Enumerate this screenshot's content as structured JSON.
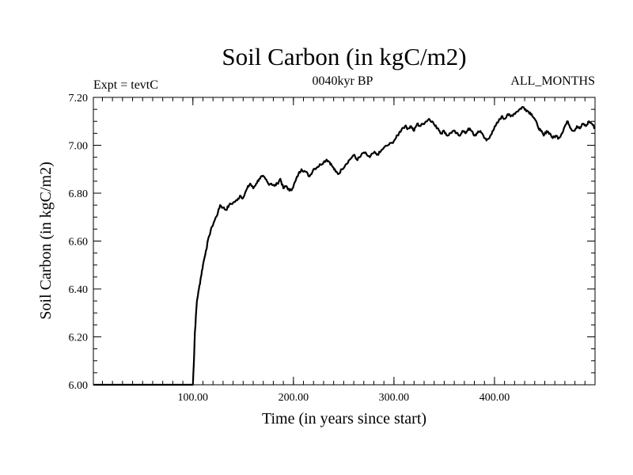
{
  "chart_data": {
    "type": "line",
    "title": "Soil Carbon (in kgC/m2)",
    "subtitle": "0040kyr BP",
    "left_note": "Expt = tevtC",
    "right_note": "ALL_MONTHS",
    "xlabel": "Time (in years since start)",
    "ylabel": "Soil Carbon (in kgC/m2)",
    "xlim": [
      1,
      500
    ],
    "ylim": [
      6.0,
      7.2
    ],
    "x_ticks": [
      100,
      200,
      300,
      400
    ],
    "x_tick_labels": [
      "100.00",
      "200.00",
      "300.00",
      "400.00"
    ],
    "y_ticks": [
      6.0,
      6.2,
      6.4,
      6.6,
      6.8,
      7.0,
      7.2
    ],
    "y_tick_labels": [
      "6.00",
      "6.20",
      "6.40",
      "6.60",
      "6.80",
      "7.00",
      "7.20"
    ],
    "x_minor_step": 10,
    "y_minor_step": 0.05,
    "grid": false,
    "series": [
      {
        "color": "#000000",
        "points": [
          [
            1,
            6.0
          ],
          [
            99,
            6.0
          ],
          [
            100,
            6.0
          ],
          [
            101,
            6.1
          ],
          [
            102,
            6.22
          ],
          [
            104,
            6.35
          ],
          [
            106,
            6.4
          ],
          [
            108,
            6.45
          ],
          [
            110,
            6.5
          ],
          [
            113,
            6.56
          ],
          [
            116,
            6.62
          ],
          [
            119,
            6.66
          ],
          [
            122,
            6.69
          ],
          [
            125,
            6.72
          ],
          [
            127,
            6.75
          ],
          [
            130,
            6.74
          ],
          [
            133,
            6.73
          ],
          [
            136,
            6.75
          ],
          [
            140,
            6.76
          ],
          [
            144,
            6.77
          ],
          [
            147,
            6.79
          ],
          [
            150,
            6.78
          ],
          [
            154,
            6.82
          ],
          [
            157,
            6.84
          ],
          [
            160,
            6.82
          ],
          [
            163,
            6.84
          ],
          [
            166,
            6.86
          ],
          [
            169,
            6.87
          ],
          [
            172,
            6.86
          ],
          [
            175,
            6.84
          ],
          [
            178,
            6.84
          ],
          [
            181,
            6.83
          ],
          [
            184,
            6.84
          ],
          [
            187,
            6.86
          ],
          [
            190,
            6.82
          ],
          [
            193,
            6.83
          ],
          [
            196,
            6.81
          ],
          [
            199,
            6.82
          ],
          [
            202,
            6.85
          ],
          [
            205,
            6.88
          ],
          [
            208,
            6.9
          ],
          [
            212,
            6.89
          ],
          [
            216,
            6.87
          ],
          [
            220,
            6.9
          ],
          [
            224,
            6.91
          ],
          [
            227,
            6.92
          ],
          [
            230,
            6.93
          ],
          [
            233,
            6.94
          ],
          [
            236,
            6.93
          ],
          [
            239,
            6.91
          ],
          [
            242,
            6.89
          ],
          [
            245,
            6.88
          ],
          [
            248,
            6.9
          ],
          [
            252,
            6.92
          ],
          [
            256,
            6.94
          ],
          [
            260,
            6.96
          ],
          [
            263,
            6.94
          ],
          [
            266,
            6.95
          ],
          [
            270,
            6.97
          ],
          [
            273,
            6.96
          ],
          [
            276,
            6.95
          ],
          [
            280,
            6.97
          ],
          [
            283,
            6.96
          ],
          [
            286,
            6.97
          ],
          [
            290,
            6.99
          ],
          [
            294,
            7.0
          ],
          [
            298,
            7.01
          ],
          [
            302,
            7.03
          ],
          [
            305,
            7.05
          ],
          [
            308,
            7.07
          ],
          [
            311,
            7.08
          ],
          [
            314,
            7.07
          ],
          [
            317,
            7.08
          ],
          [
            320,
            7.06
          ],
          [
            323,
            7.09
          ],
          [
            326,
            7.08
          ],
          [
            329,
            7.09
          ],
          [
            332,
            7.1
          ],
          [
            335,
            7.11
          ],
          [
            338,
            7.1
          ],
          [
            341,
            7.08
          ],
          [
            344,
            7.07
          ],
          [
            347,
            7.05
          ],
          [
            350,
            7.06
          ],
          [
            353,
            7.04
          ],
          [
            356,
            7.05
          ],
          [
            359,
            7.06
          ],
          [
            362,
            7.05
          ],
          [
            365,
            7.04
          ],
          [
            368,
            7.06
          ],
          [
            371,
            7.05
          ],
          [
            374,
            7.07
          ],
          [
            377,
            7.06
          ],
          [
            380,
            7.04
          ],
          [
            383,
            7.05
          ],
          [
            386,
            7.06
          ],
          [
            389,
            7.04
          ],
          [
            392,
            7.02
          ],
          [
            395,
            7.03
          ],
          [
            398,
            7.06
          ],
          [
            401,
            7.08
          ],
          [
            404,
            7.1
          ],
          [
            407,
            7.12
          ],
          [
            410,
            7.11
          ],
          [
            413,
            7.13
          ],
          [
            416,
            7.12
          ],
          [
            419,
            7.13
          ],
          [
            422,
            7.14
          ],
          [
            425,
            7.15
          ],
          [
            428,
            7.16
          ],
          [
            431,
            7.15
          ],
          [
            434,
            7.14
          ],
          [
            437,
            7.13
          ],
          [
            440,
            7.11
          ],
          [
            443,
            7.08
          ],
          [
            446,
            7.06
          ],
          [
            449,
            7.04
          ],
          [
            452,
            7.06
          ],
          [
            455,
            7.05
          ],
          [
            458,
            7.03
          ],
          [
            461,
            7.04
          ],
          [
            464,
            7.03
          ],
          [
            467,
            7.05
          ],
          [
            470,
            7.08
          ],
          [
            473,
            7.1
          ],
          [
            476,
            7.07
          ],
          [
            479,
            7.06
          ],
          [
            482,
            7.08
          ],
          [
            485,
            7.07
          ],
          [
            488,
            7.09
          ],
          [
            491,
            7.08
          ],
          [
            494,
            7.1
          ],
          [
            497,
            7.09
          ],
          [
            500,
            7.07
          ]
        ]
      }
    ]
  }
}
